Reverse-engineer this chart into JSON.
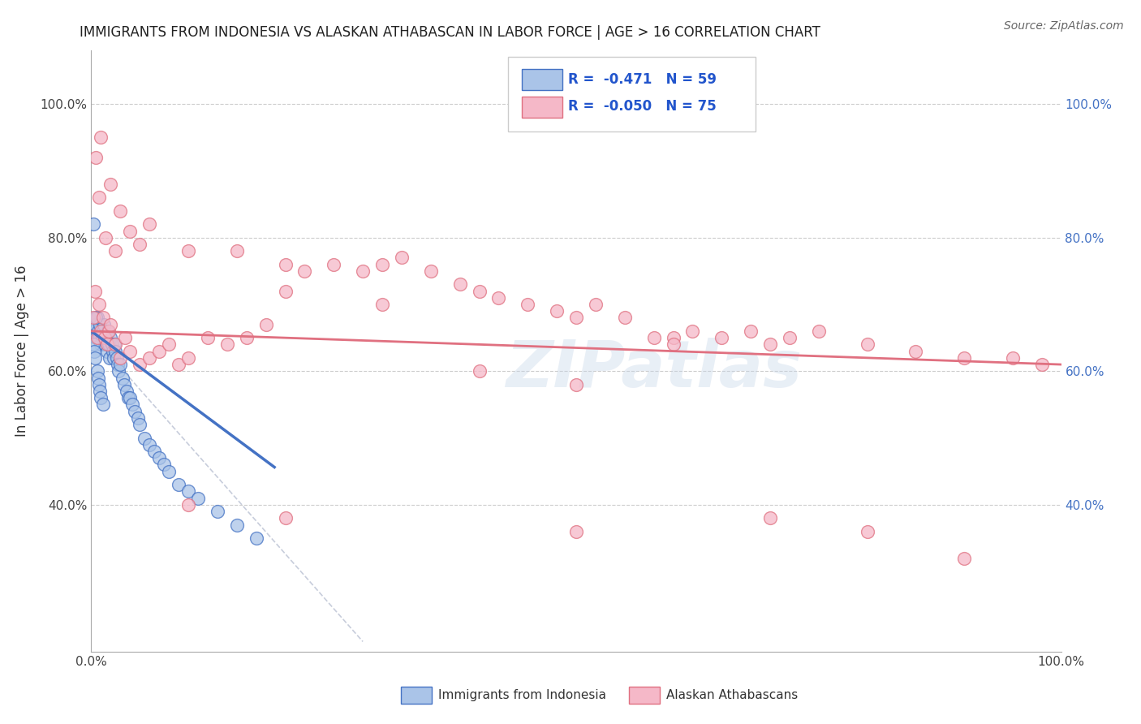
{
  "title": "IMMIGRANTS FROM INDONESIA VS ALASKAN ATHABASCAN IN LABOR FORCE | AGE > 16 CORRELATION CHART",
  "source": "Source: ZipAtlas.com",
  "ylabel": "In Labor Force | Age > 16",
  "legend_labels": [
    "Immigrants from Indonesia",
    "Alaskan Athabascans"
  ],
  "r_values": [
    -0.471,
    -0.05
  ],
  "n_values": [
    59,
    75
  ],
  "color_blue": "#aac4e8",
  "color_pink": "#f5b8c8",
  "line_blue": "#4472c4",
  "line_pink": "#e07080",
  "watermark": "ZIPatlas",
  "xlim": [
    0.0,
    1.0
  ],
  "ylim": [
    0.18,
    1.08
  ],
  "yticks": [
    0.4,
    0.6,
    0.8,
    1.0
  ],
  "xticks": [
    0.0,
    1.0
  ],
  "blue_x": [
    0.002,
    0.003,
    0.004,
    0.005,
    0.006,
    0.007,
    0.008,
    0.009,
    0.01,
    0.011,
    0.012,
    0.013,
    0.014,
    0.015,
    0.016,
    0.017,
    0.018,
    0.019,
    0.02,
    0.021,
    0.022,
    0.023,
    0.024,
    0.025,
    0.026,
    0.027,
    0.028,
    0.03,
    0.032,
    0.034,
    0.036,
    0.038,
    0.04,
    0.042,
    0.045,
    0.048,
    0.05,
    0.055,
    0.06,
    0.065,
    0.07,
    0.075,
    0.08,
    0.09,
    0.1,
    0.11,
    0.13,
    0.15,
    0.17,
    0.002,
    0.003,
    0.004,
    0.005,
    0.006,
    0.007,
    0.008,
    0.009,
    0.01,
    0.012
  ],
  "blue_y": [
    0.82,
    0.66,
    0.67,
    0.65,
    0.68,
    0.66,
    0.65,
    0.67,
    0.64,
    0.65,
    0.66,
    0.67,
    0.64,
    0.65,
    0.63,
    0.66,
    0.64,
    0.62,
    0.65,
    0.64,
    0.63,
    0.62,
    0.64,
    0.63,
    0.62,
    0.61,
    0.6,
    0.61,
    0.59,
    0.58,
    0.57,
    0.56,
    0.56,
    0.55,
    0.54,
    0.53,
    0.52,
    0.5,
    0.49,
    0.48,
    0.47,
    0.46,
    0.45,
    0.43,
    0.42,
    0.41,
    0.39,
    0.37,
    0.35,
    0.64,
    0.63,
    0.62,
    0.68,
    0.6,
    0.59,
    0.58,
    0.57,
    0.56,
    0.55
  ],
  "pink_x": [
    0.002,
    0.004,
    0.006,
    0.008,
    0.01,
    0.012,
    0.014,
    0.016,
    0.018,
    0.02,
    0.025,
    0.03,
    0.035,
    0.04,
    0.05,
    0.06,
    0.07,
    0.08,
    0.09,
    0.1,
    0.12,
    0.14,
    0.16,
    0.18,
    0.2,
    0.22,
    0.25,
    0.28,
    0.3,
    0.32,
    0.35,
    0.38,
    0.4,
    0.42,
    0.45,
    0.48,
    0.5,
    0.52,
    0.55,
    0.58,
    0.6,
    0.62,
    0.65,
    0.68,
    0.7,
    0.72,
    0.75,
    0.8,
    0.85,
    0.9,
    0.95,
    0.98,
    0.01,
    0.02,
    0.03,
    0.04,
    0.05,
    0.005,
    0.008,
    0.015,
    0.025,
    0.06,
    0.1,
    0.15,
    0.2,
    0.3,
    0.4,
    0.5,
    0.6,
    0.7,
    0.8,
    0.9,
    0.1,
    0.2,
    0.5
  ],
  "pink_y": [
    0.68,
    0.72,
    0.65,
    0.7,
    0.66,
    0.68,
    0.65,
    0.64,
    0.66,
    0.67,
    0.64,
    0.62,
    0.65,
    0.63,
    0.61,
    0.62,
    0.63,
    0.64,
    0.61,
    0.62,
    0.65,
    0.64,
    0.65,
    0.67,
    0.72,
    0.75,
    0.76,
    0.75,
    0.76,
    0.77,
    0.75,
    0.73,
    0.72,
    0.71,
    0.7,
    0.69,
    0.68,
    0.7,
    0.68,
    0.65,
    0.65,
    0.66,
    0.65,
    0.66,
    0.64,
    0.65,
    0.66,
    0.64,
    0.63,
    0.62,
    0.62,
    0.61,
    0.95,
    0.88,
    0.84,
    0.81,
    0.79,
    0.92,
    0.86,
    0.8,
    0.78,
    0.82,
    0.78,
    0.78,
    0.76,
    0.7,
    0.6,
    0.58,
    0.64,
    0.38,
    0.36,
    0.32,
    0.4,
    0.38,
    0.36
  ],
  "blue_line_x0": 0.0,
  "blue_line_y0": 0.66,
  "blue_line_x1": 0.19,
  "blue_line_y1": 0.455,
  "pink_line_x0": 0.0,
  "pink_line_y0": 0.66,
  "pink_line_x1": 1.0,
  "pink_line_y1": 0.61,
  "dash_line_x0": 0.0,
  "dash_line_y0": 0.655,
  "dash_line_x1": 0.28,
  "dash_line_y1": 0.195
}
